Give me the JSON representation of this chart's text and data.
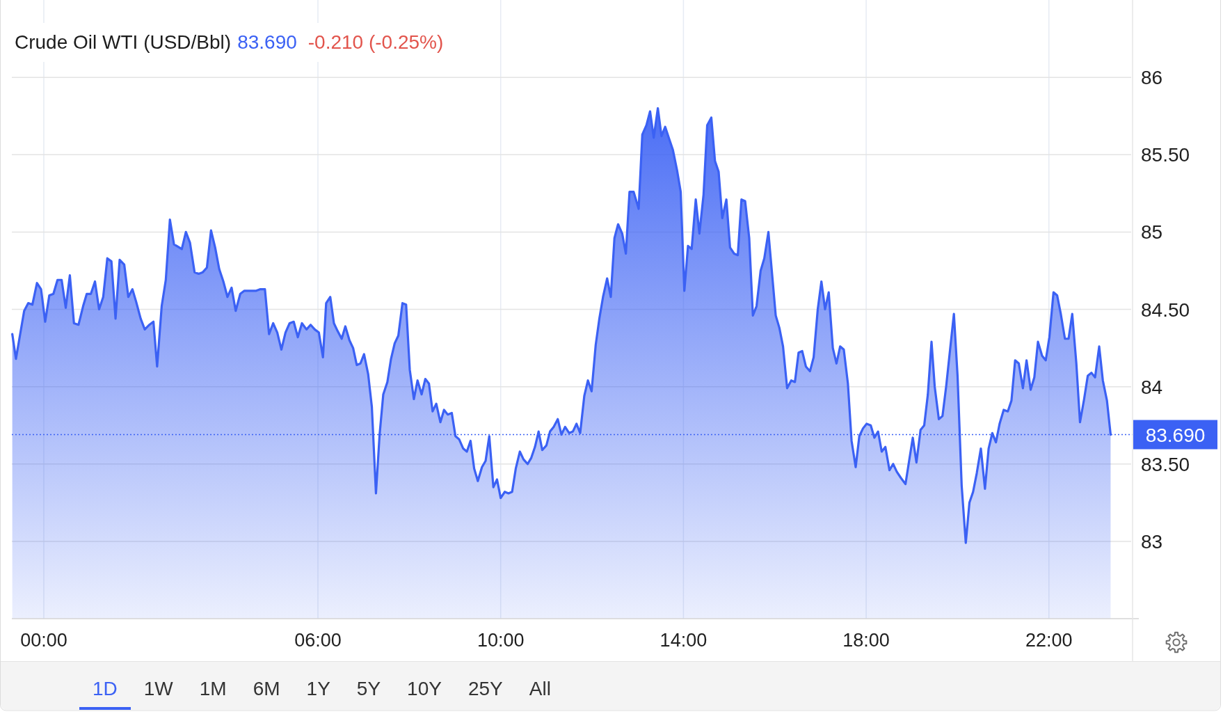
{
  "chart_data": {
    "type": "area",
    "title": "Crude Oil WTI (USD/Bbl)",
    "annotations": [
      "83.690",
      "-0.210 (-0.25%)",
      "1D",
      "1W",
      "1M",
      "6M",
      "1Y",
      "5Y",
      "10Y",
      "25Y",
      "All"
    ],
    "x": [
      -0.69,
      -0.61,
      -0.43,
      -0.34,
      -0.25,
      -0.15,
      -0.06,
      0.03,
      0.12,
      0.21,
      0.3,
      0.39,
      0.48,
      0.57,
      0.66,
      0.76,
      0.86,
      0.94,
      1.03,
      1.12,
      1.21,
      1.3,
      1.39,
      1.48,
      1.57,
      1.66,
      1.76,
      1.85,
      1.94,
      2.02,
      2.12,
      2.21,
      2.31,
      2.4,
      2.48,
      2.58,
      2.67,
      2.76,
      2.85,
      3.02,
      3.11,
      3.2,
      3.3,
      3.39,
      3.48,
      3.57,
      3.66,
      3.75,
      3.84,
      3.93,
      4.02,
      4.11,
      4.2,
      4.3,
      4.39,
      4.65,
      4.74,
      4.84,
      4.93,
      5.02,
      5.11,
      5.2,
      5.29,
      5.38,
      5.47,
      5.56,
      5.65,
      5.75,
      5.84,
      5.93,
      6.02,
      6.11,
      6.18,
      6.27,
      6.35,
      6.43,
      6.52,
      6.6,
      6.69,
      6.77,
      6.85,
      6.93,
      7.01,
      7.1,
      7.18,
      7.27,
      7.35,
      7.43,
      7.52,
      7.6,
      7.68,
      7.76,
      7.85,
      7.93,
      8.01,
      8.1,
      8.18,
      8.27,
      8.35,
      8.43,
      8.51,
      8.59,
      8.68,
      8.76,
      8.84,
      8.93,
      9.01,
      9.09,
      9.18,
      9.26,
      9.34,
      9.42,
      9.5,
      9.59,
      9.67,
      9.75,
      9.84,
      9.92,
      10.0,
      10.09,
      10.17,
      10.25,
      10.33,
      10.42,
      10.5,
      10.59,
      10.67,
      10.75,
      10.83,
      10.91,
      11.0,
      11.08,
      11.16,
      11.25,
      11.33,
      11.41,
      11.5,
      11.58,
      11.66,
      11.74,
      11.83,
      11.91,
      11.99,
      12.08,
      12.16,
      12.24,
      12.33,
      12.41,
      12.49,
      12.57,
      12.66,
      12.74,
      12.82,
      12.91,
      13.02,
      13.1,
      13.19,
      13.27,
      13.35,
      13.44,
      13.52,
      13.6,
      13.69,
      13.77,
      13.86,
      13.94,
      14.02,
      14.1,
      14.18,
      14.27,
      14.35,
      14.44,
      14.52,
      14.61,
      14.69,
      14.77,
      14.85,
      14.94,
      15.02,
      15.11,
      15.19,
      15.27,
      15.35,
      15.44,
      15.52,
      15.6,
      15.69,
      15.77,
      15.86,
      15.94,
      16.02,
      16.1,
      16.18,
      16.27,
      16.36,
      16.44,
      16.52,
      16.6,
      16.68,
      16.77,
      16.85,
      16.94,
      17.02,
      17.1,
      17.18,
      17.27,
      17.35,
      17.43,
      17.51,
      17.6,
      17.68,
      17.77,
      17.85,
      17.93,
      18.01,
      18.1,
      18.18,
      18.26,
      18.34,
      18.42,
      18.51,
      18.59,
      18.67,
      18.76,
      18.86,
      18.94,
      19.02,
      19.1,
      19.19,
      19.27,
      19.35,
      19.43,
      19.5,
      19.59,
      19.67,
      19.75,
      19.84,
      19.92,
      20.0,
      20.09,
      20.18,
      20.26,
      20.34,
      20.42,
      20.51,
      20.6,
      20.68,
      20.76,
      20.84,
      20.92,
      21.01,
      21.1,
      21.18,
      21.26,
      21.34,
      21.43,
      21.51,
      21.6,
      21.68,
      21.76,
      21.85,
      21.93,
      22.01,
      22.1,
      22.18,
      22.26,
      22.35,
      22.43,
      22.51,
      22.6,
      22.68,
      22.77,
      22.85,
      22.93,
      23.01,
      23.1,
      23.18,
      23.27,
      23.35
    ],
    "series": [
      {
        "color": "#3b61f4",
        "values": [
          84.34,
          84.18,
          84.49,
          84.54,
          84.53,
          84.67,
          84.63,
          84.42,
          84.59,
          84.6,
          84.69,
          84.69,
          84.51,
          84.72,
          84.41,
          84.4,
          84.52,
          84.6,
          84.6,
          84.68,
          84.5,
          84.58,
          84.83,
          84.81,
          84.44,
          84.82,
          84.79,
          84.58,
          84.63,
          84.55,
          84.44,
          84.37,
          84.4,
          84.42,
          84.13,
          84.52,
          84.69,
          85.08,
          84.92,
          84.89,
          85.0,
          84.93,
          84.74,
          84.73,
          84.74,
          84.77,
          85.01,
          84.9,
          84.76,
          84.68,
          84.58,
          84.64,
          84.49,
          84.6,
          84.62,
          84.62,
          84.63,
          84.63,
          84.34,
          84.41,
          84.35,
          84.24,
          84.35,
          84.41,
          84.42,
          84.32,
          84.41,
          84.37,
          84.4,
          84.37,
          84.35,
          84.19,
          84.54,
          84.58,
          84.41,
          84.36,
          84.31,
          84.39,
          84.3,
          84.25,
          84.14,
          84.15,
          84.21,
          84.08,
          83.87,
          83.31,
          83.69,
          83.95,
          84.03,
          84.18,
          84.28,
          84.33,
          84.54,
          84.53,
          84.11,
          83.92,
          84.04,
          83.95,
          84.05,
          84.02,
          83.84,
          83.89,
          83.77,
          83.85,
          83.82,
          83.83,
          83.68,
          83.66,
          83.6,
          83.58,
          83.65,
          83.47,
          83.39,
          83.48,
          83.52,
          83.68,
          83.35,
          83.4,
          83.28,
          83.32,
          83.31,
          83.32,
          83.47,
          83.58,
          83.53,
          83.5,
          83.54,
          83.61,
          83.71,
          83.59,
          83.62,
          83.71,
          83.74,
          83.79,
          83.69,
          83.74,
          83.7,
          83.71,
          83.76,
          83.7,
          83.94,
          84.04,
          83.97,
          84.27,
          84.44,
          84.58,
          84.7,
          84.58,
          84.96,
          85.05,
          84.99,
          84.86,
          85.26,
          85.26,
          85.15,
          85.63,
          85.69,
          85.78,
          85.61,
          85.8,
          85.62,
          85.68,
          85.6,
          85.53,
          85.4,
          85.26,
          84.62,
          84.91,
          84.89,
          85.21,
          84.99,
          85.24,
          85.69,
          85.74,
          85.46,
          85.39,
          85.09,
          85.21,
          84.9,
          84.86,
          84.85,
          85.21,
          85.2,
          84.96,
          84.46,
          84.52,
          84.75,
          84.83,
          85.0,
          84.73,
          84.46,
          84.38,
          84.26,
          83.99,
          84.04,
          84.03,
          84.22,
          84.23,
          84.13,
          84.1,
          84.19,
          84.5,
          84.68,
          84.5,
          84.61,
          84.25,
          84.15,
          84.26,
          84.24,
          84.02,
          83.65,
          83.48,
          83.68,
          83.73,
          83.76,
          83.75,
          83.67,
          83.71,
          83.58,
          83.61,
          83.46,
          83.5,
          83.45,
          83.41,
          83.37,
          83.52,
          83.67,
          83.51,
          83.72,
          83.75,
          83.95,
          84.29,
          84.0,
          83.79,
          83.81,
          84.0,
          84.25,
          84.47,
          84.07,
          83.36,
          82.99,
          83.25,
          83.32,
          83.44,
          83.6,
          83.34,
          83.6,
          83.7,
          83.64,
          83.76,
          83.85,
          83.84,
          83.91,
          84.17,
          84.15,
          83.99,
          84.17,
          83.98,
          84.06,
          84.29,
          84.2,
          84.17,
          84.32,
          84.61,
          84.59,
          84.47,
          84.31,
          84.31,
          84.47,
          84.15,
          83.77,
          83.92,
          84.07,
          84.09,
          84.06,
          84.26,
          84.04,
          83.91,
          83.69
        ]
      }
    ],
    "xlim": [
      -0.7,
      23.8
    ],
    "xticks": [
      {
        "value": 0,
        "label": "00:00"
      },
      {
        "value": 6,
        "label": "06:00"
      },
      {
        "value": 10,
        "label": "10:00"
      },
      {
        "value": 14,
        "label": "14:00"
      },
      {
        "value": 18,
        "label": "18:00"
      },
      {
        "value": 22,
        "label": "22:00"
      }
    ],
    "ylim": [
      82.5,
      86.5
    ],
    "yticks": [
      83,
      {
        "value": 83.5,
        "label": "83.50"
      },
      84,
      {
        "value": 84.5,
        "label": "84.50"
      },
      85,
      {
        "value": 85.5,
        "label": "85.50"
      },
      86
    ],
    "grid": true,
    "ref_lines": [
      {
        "axis": "y",
        "value": 83.69,
        "label": "83.690",
        "color": "#3b61f4",
        "line_style": "dotted"
      }
    ]
  }
}
